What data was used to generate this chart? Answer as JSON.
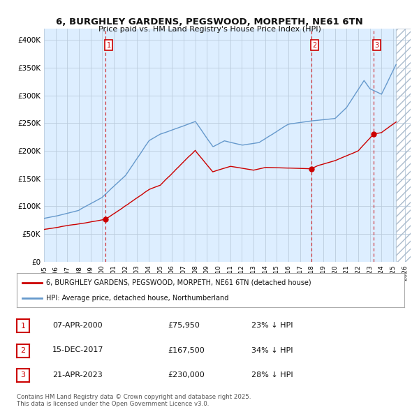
{
  "title": "6, BURGHLEY GARDENS, PEGSWOOD, MORPETH, NE61 6TN",
  "subtitle": "Price paid vs. HM Land Registry's House Price Index (HPI)",
  "house_color": "#cc0000",
  "hpi_color": "#6699cc",
  "background_color": "#ffffff",
  "plot_bg_color": "#ddeeff",
  "grid_color": "#bbccdd",
  "xmin": 1995.0,
  "xmax": 2026.5,
  "ymin": 0,
  "ymax": 420000,
  "yticks": [
    0,
    50000,
    100000,
    150000,
    200000,
    250000,
    300000,
    350000,
    400000
  ],
  "ytick_labels": [
    "£0",
    "£50K",
    "£100K",
    "£150K",
    "£200K",
    "£250K",
    "£300K",
    "£350K",
    "£400K"
  ],
  "sale_points": [
    {
      "year": 2000.27,
      "price": 75950,
      "label": "1"
    },
    {
      "year": 2017.96,
      "price": 167500,
      "label": "2"
    },
    {
      "year": 2023.31,
      "price": 230000,
      "label": "3"
    }
  ],
  "vline_color": "#cc0000",
  "legend_entries": [
    "6, BURGHLEY GARDENS, PEGSWOOD, MORPETH, NE61 6TN (detached house)",
    "HPI: Average price, detached house, Northumberland"
  ],
  "table_rows": [
    {
      "num": "1",
      "date": "07-APR-2000",
      "price": "£75,950",
      "change": "23% ↓ HPI"
    },
    {
      "num": "2",
      "date": "15-DEC-2017",
      "price": "£167,500",
      "change": "34% ↓ HPI"
    },
    {
      "num": "3",
      "date": "21-APR-2023",
      "price": "£230,000",
      "change": "28% ↓ HPI"
    }
  ],
  "footnote": "Contains HM Land Registry data © Crown copyright and database right 2025.\nThis data is licensed under the Open Government Licence v3.0.",
  "future_start": 2025.25
}
